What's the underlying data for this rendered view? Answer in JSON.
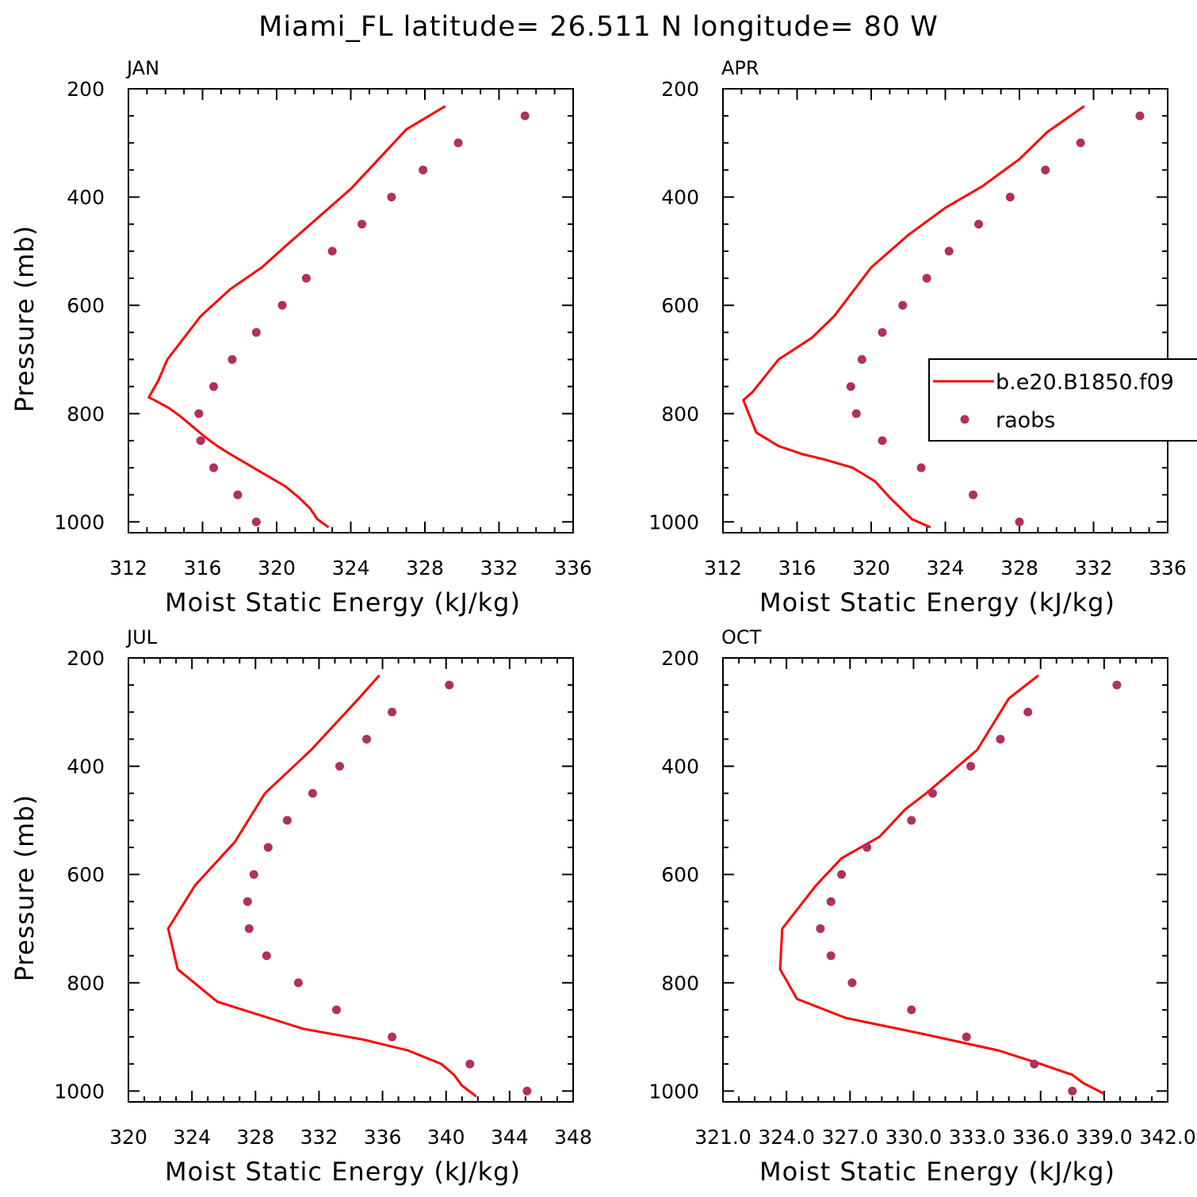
{
  "title": "Miami_FL  latitude= 26.511 N longitude= 80 W",
  "chart_data": [
    {
      "type": "line",
      "panel": "JAN",
      "xlabel": "Moist Static Energy (kJ/kg)",
      "ylabel": "Pressure (mb)",
      "xlim": [
        312,
        336
      ],
      "ylim": [
        1000,
        200
      ],
      "x_ticks": [
        "312",
        "316",
        "320",
        "324",
        "328",
        "332",
        "336"
      ],
      "y_ticks": [
        "200",
        "400",
        "600",
        "800",
        "1000"
      ],
      "series": [
        {
          "name": "b.e20.B1850.f09",
          "style": "line",
          "color": "#ff0000",
          "x": [
            322.8,
            322.2,
            321.8,
            321.2,
            320.5,
            319.5,
            318.5,
            317.5,
            316.8,
            316.2,
            315.5,
            314.8,
            314.2,
            313.4,
            313.1,
            313.6,
            314.1,
            315.9,
            317.5,
            319.2,
            320.5,
            322.5,
            324.0,
            325.5,
            327.0,
            329.1
          ],
          "y": [
            1010,
            995,
            975,
            955,
            935,
            915,
            895,
            875,
            860,
            845,
            825,
            805,
            790,
            775,
            770,
            740,
            700,
            620,
            570,
            530,
            490,
            430,
            385,
            330,
            275,
            232
          ]
        },
        {
          "name": "raobs",
          "style": "markers",
          "color": "#b03060",
          "x": [
            318.9,
            317.9,
            316.6,
            315.9,
            315.8,
            316.6,
            317.6,
            318.9,
            320.3,
            321.6,
            323.0,
            324.6,
            326.2,
            327.9,
            329.8,
            333.4
          ],
          "y": [
            1000,
            950,
            900,
            850,
            800,
            750,
            700,
            650,
            600,
            550,
            500,
            450,
            400,
            350,
            300,
            250
          ]
        }
      ]
    },
    {
      "type": "line",
      "panel": "APR",
      "xlabel": "Moist Static Energy (kJ/kg)",
      "ylabel": "",
      "xlim": [
        312,
        336
      ],
      "ylim": [
        1000,
        200
      ],
      "x_ticks": [
        "312",
        "316",
        "320",
        "324",
        "328",
        "332",
        "336"
      ],
      "y_ticks": [
        "200",
        "400",
        "600",
        "800",
        "1000"
      ],
      "legend": {
        "position": "right",
        "entries": [
          "b.e20.B1850.f09",
          "raobs"
        ]
      },
      "series": [
        {
          "name": "b.e20.B1850.f09",
          "style": "line",
          "color": "#ff0000",
          "x": [
            323.2,
            322.2,
            321.0,
            320.2,
            319.0,
            317.5,
            316.3,
            315.0,
            313.8,
            313.1,
            313.6,
            315.0,
            316.8,
            318.0,
            320.0,
            322.0,
            324.0,
            326.0,
            328.0,
            329.5,
            331.5
          ],
          "y": [
            1010,
            995,
            955,
            925,
            900,
            885,
            875,
            860,
            835,
            775,
            760,
            700,
            660,
            620,
            530,
            470,
            420,
            380,
            330,
            280,
            232
          ]
        },
        {
          "name": "raobs",
          "style": "markers",
          "color": "#b03060",
          "x": [
            328.0,
            325.5,
            322.7,
            320.6,
            319.2,
            318.9,
            319.5,
            320.6,
            321.7,
            323.0,
            324.2,
            325.8,
            327.5,
            329.4,
            331.3,
            334.5
          ],
          "y": [
            1000,
            950,
            900,
            850,
            800,
            750,
            700,
            650,
            600,
            550,
            500,
            450,
            400,
            350,
            300,
            250
          ]
        }
      ]
    },
    {
      "type": "line",
      "panel": "JUL",
      "xlabel": "Moist Static Energy (kJ/kg)",
      "ylabel": "Pressure (mb)",
      "xlim": [
        320,
        348
      ],
      "ylim": [
        1000,
        200
      ],
      "x_ticks": [
        "320",
        "324",
        "328",
        "332",
        "336",
        "340",
        "344",
        "348"
      ],
      "y_ticks": [
        "200",
        "400",
        "600",
        "800",
        "1000"
      ],
      "series": [
        {
          "name": "b.e20.B1850.f09",
          "style": "line",
          "color": "#ff0000",
          "x": [
            341.9,
            341.0,
            340.5,
            339.7,
            337.6,
            334.8,
            331.0,
            325.6,
            323.1,
            322.5,
            324.2,
            326.7,
            328.6,
            331.5,
            334.5,
            335.8
          ],
          "y": [
            1010,
            990,
            970,
            950,
            925,
            905,
            885,
            835,
            775,
            700,
            620,
            540,
            450,
            370,
            275,
            232
          ]
        },
        {
          "name": "raobs",
          "style": "markers",
          "color": "#b03060",
          "x": [
            345.1,
            341.5,
            336.6,
            333.1,
            330.7,
            328.7,
            327.6,
            327.5,
            327.9,
            328.8,
            330.0,
            331.6,
            333.3,
            335.0,
            336.6,
            340.2
          ],
          "y": [
            1000,
            950,
            900,
            850,
            800,
            750,
            700,
            650,
            600,
            550,
            500,
            450,
            400,
            350,
            300,
            250
          ]
        }
      ]
    },
    {
      "type": "line",
      "panel": "OCT",
      "xlabel": "Moist Static Energy (kJ/kg)",
      "ylabel": "",
      "xlim": [
        321.0,
        342.0
      ],
      "ylim": [
        1000,
        200
      ],
      "x_ticks": [
        "321.0",
        "324.0",
        "327.0",
        "330.0",
        "333.0",
        "336.0",
        "339.0",
        "342.0"
      ],
      "y_ticks": [
        "200",
        "400",
        "600",
        "800",
        "1000"
      ],
      "series": [
        {
          "name": "b.e20.B1850.f09",
          "style": "line",
          "color": "#ff0000",
          "x": [
            339.0,
            338.0,
            337.5,
            336.0,
            334.0,
            330.5,
            326.8,
            324.5,
            323.7,
            323.8,
            325.4,
            326.6,
            328.4,
            329.6,
            330.6,
            333.0,
            334.5,
            335.9
          ],
          "y": [
            1005,
            985,
            970,
            950,
            925,
            895,
            865,
            830,
            775,
            700,
            620,
            570,
            530,
            480,
            450,
            370,
            275,
            232
          ]
        },
        {
          "name": "raobs",
          "style": "markers",
          "color": "#b03060",
          "x": [
            337.5,
            335.7,
            332.5,
            329.9,
            327.1,
            326.1,
            325.6,
            326.1,
            326.6,
            327.8,
            329.9,
            330.9,
            332.7,
            334.1,
            335.4,
            339.6
          ],
          "y": [
            1000,
            950,
            900,
            850,
            800,
            750,
            700,
            650,
            600,
            550,
            500,
            450,
            400,
            350,
            300,
            250
          ]
        }
      ]
    }
  ]
}
